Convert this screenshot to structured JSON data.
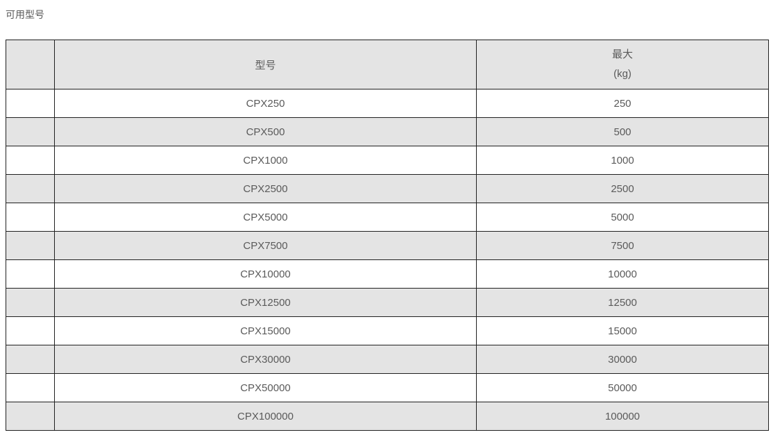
{
  "page": {
    "title": "可用型号"
  },
  "table": {
    "header": {
      "blank": "",
      "model": "型号",
      "max_line1": "最大",
      "max_line2": "(kg)"
    },
    "rows": [
      {
        "model": "CPX250",
        "max": "250"
      },
      {
        "model": "CPX500",
        "max": "500"
      },
      {
        "model": "CPX1000",
        "max": "1000"
      },
      {
        "model": "CPX2500",
        "max": "2500"
      },
      {
        "model": "CPX5000",
        "max": "5000"
      },
      {
        "model": "CPX7500",
        "max": "7500"
      },
      {
        "model": "CPX10000",
        "max": "10000"
      },
      {
        "model": "CPX12500",
        "max": "12500"
      },
      {
        "model": "CPX15000",
        "max": "15000"
      },
      {
        "model": "CPX30000",
        "max": "30000"
      },
      {
        "model": "CPX50000",
        "max": "50000"
      },
      {
        "model": "CPX100000",
        "max": "100000"
      }
    ],
    "colors": {
      "stripe": "#e4e4e4",
      "border": "#1f1f1f",
      "text": "#5a5a5a"
    }
  }
}
